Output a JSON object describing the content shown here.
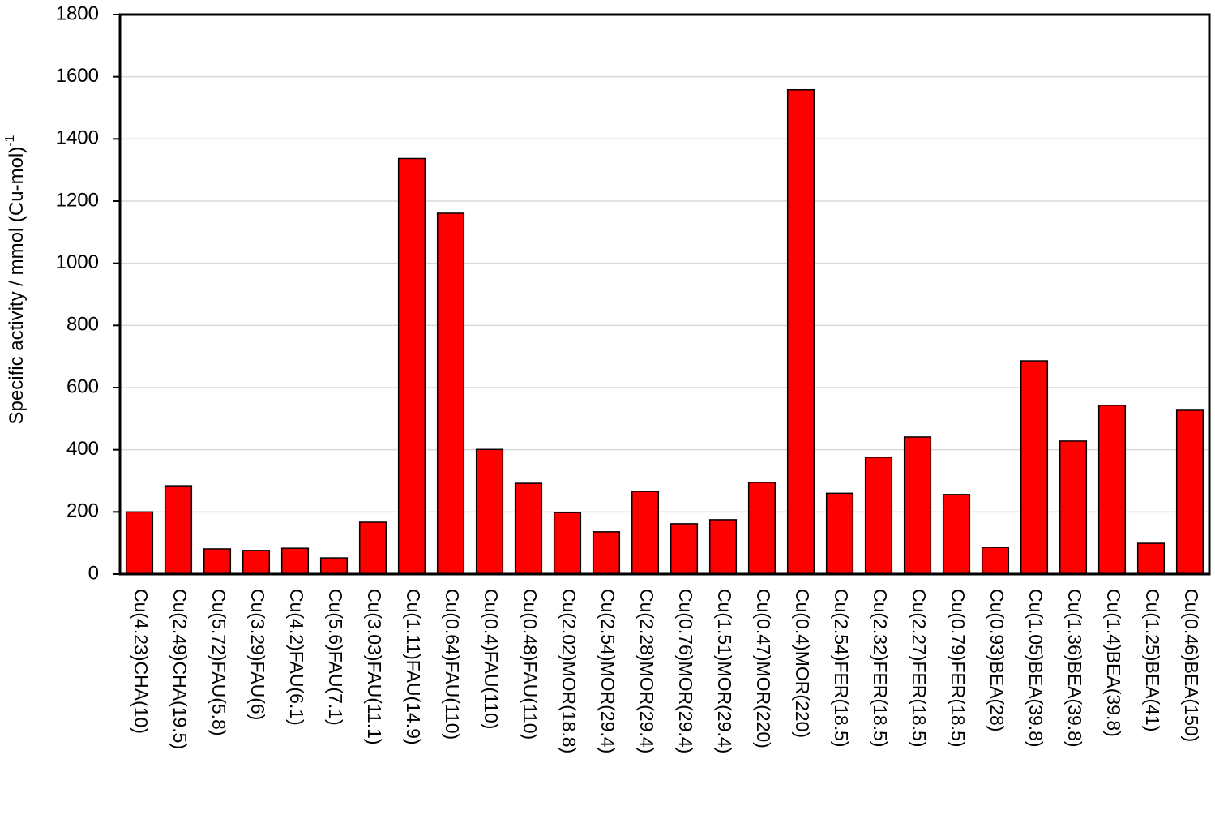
{
  "chart_data": {
    "type": "bar",
    "ylabel": "Specific activity / mmol (Cu-mol)",
    "ylabel_superscript": "-1",
    "categories": [
      "Cu(4.23)CHA(10)",
      "Cu(2.49)CHA(19.5)",
      "Cu(5.72)FAU(5.8)",
      "Cu(3.29)FAU(6)",
      "Cu(4.2)FAU(6.1)",
      "Cu(5.6)FAU(7.1)",
      "Cu(3.03)FAU(11.1)",
      "Cu(1.11)FAU(14.9)",
      "Cu(0.64)FAU(110)",
      "Cu(0.4)FAU(110)",
      "Cu(0.48)FAU(110)",
      "Cu(2.02)MOR(18.8)",
      "Cu(2.54)MOR(29.4)",
      "Cu(2.28)MOR(29.4)",
      "Cu(0.76)MOR(29.4)",
      "Cu(1.51)MOR(29.4)",
      "Cu(0.47)MOR(220)",
      "Cu(0.4)MOR(220)",
      "Cu(2.54)FER(18.5)",
      "Cu(2.32)FER(18.5)",
      "Cu(2.27)FER(18.5)",
      "Cu(0.79)FER(18.5)",
      "Cu(0.93)BEA(28)",
      "Cu(1.05)BEA(39.8)",
      "Cu(1.36)BEA(39.8)",
      "Cu(1.4)BEA(39.8)",
      "Cu(1.25)BEA(41)",
      "Cu(0.46)BEA(150)"
    ],
    "values": [
      200,
      284,
      81,
      76,
      83,
      52,
      167,
      1337,
      1161,
      401,
      292,
      198,
      136,
      266,
      162,
      175,
      295,
      1558,
      260,
      376,
      441,
      256,
      86,
      686,
      428,
      543,
      99,
      527
    ],
    "color": "#ff0000",
    "ylim": [
      0,
      1800
    ],
    "yticks": [
      0,
      200,
      400,
      600,
      800,
      1000,
      1200,
      1400,
      1600,
      1800
    ],
    "grid": true
  }
}
